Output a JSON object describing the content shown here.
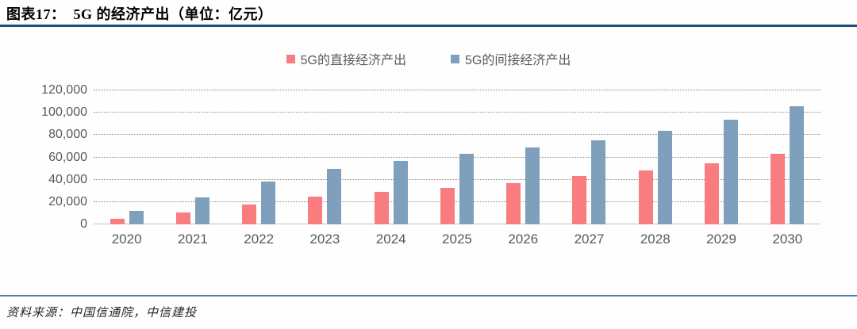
{
  "header": {
    "title": "图表17：  5G 的经济产出（单位：亿元）"
  },
  "footer": {
    "source": "资料来源：中国信通院，中信建投"
  },
  "colors": {
    "direct_series": "#f97d7e",
    "indirect_series": "#7ea0bc",
    "title_rule": "#1b4e7e",
    "footer_rule": "#4e7fa7",
    "axis_text": "#595959",
    "gridline": "#8c8c8c"
  },
  "chart_data": {
    "type": "bar",
    "title": "5G 的经济产出",
    "unit": "亿元",
    "categories": [
      "2020",
      "2021",
      "2022",
      "2023",
      "2024",
      "2025",
      "2026",
      "2027",
      "2028",
      "2029",
      "2030"
    ],
    "series": [
      {
        "name": "5G的直接经济产出",
        "color": "#f97d7e",
        "values": [
          4840,
          11000,
          18000,
          25000,
          29000,
          33000,
          37000,
          43000,
          48500,
          55000,
          63000
        ]
      },
      {
        "name": "5G的间接经济产出",
        "color": "#7ea0bc",
        "values": [
          12000,
          24000,
          38000,
          50000,
          57000,
          63000,
          69000,
          75000,
          84000,
          94000,
          106000
        ]
      }
    ],
    "xlabel": "",
    "ylabel": "",
    "ylim": [
      0,
      120000
    ],
    "ytick_interval": 20000,
    "ytick_labels": [
      "0",
      "20,000",
      "40,000",
      "60,000",
      "80,000",
      "100,000",
      "120,000"
    ],
    "grid": "horizontal-dotted",
    "legend_position": "top-center"
  }
}
